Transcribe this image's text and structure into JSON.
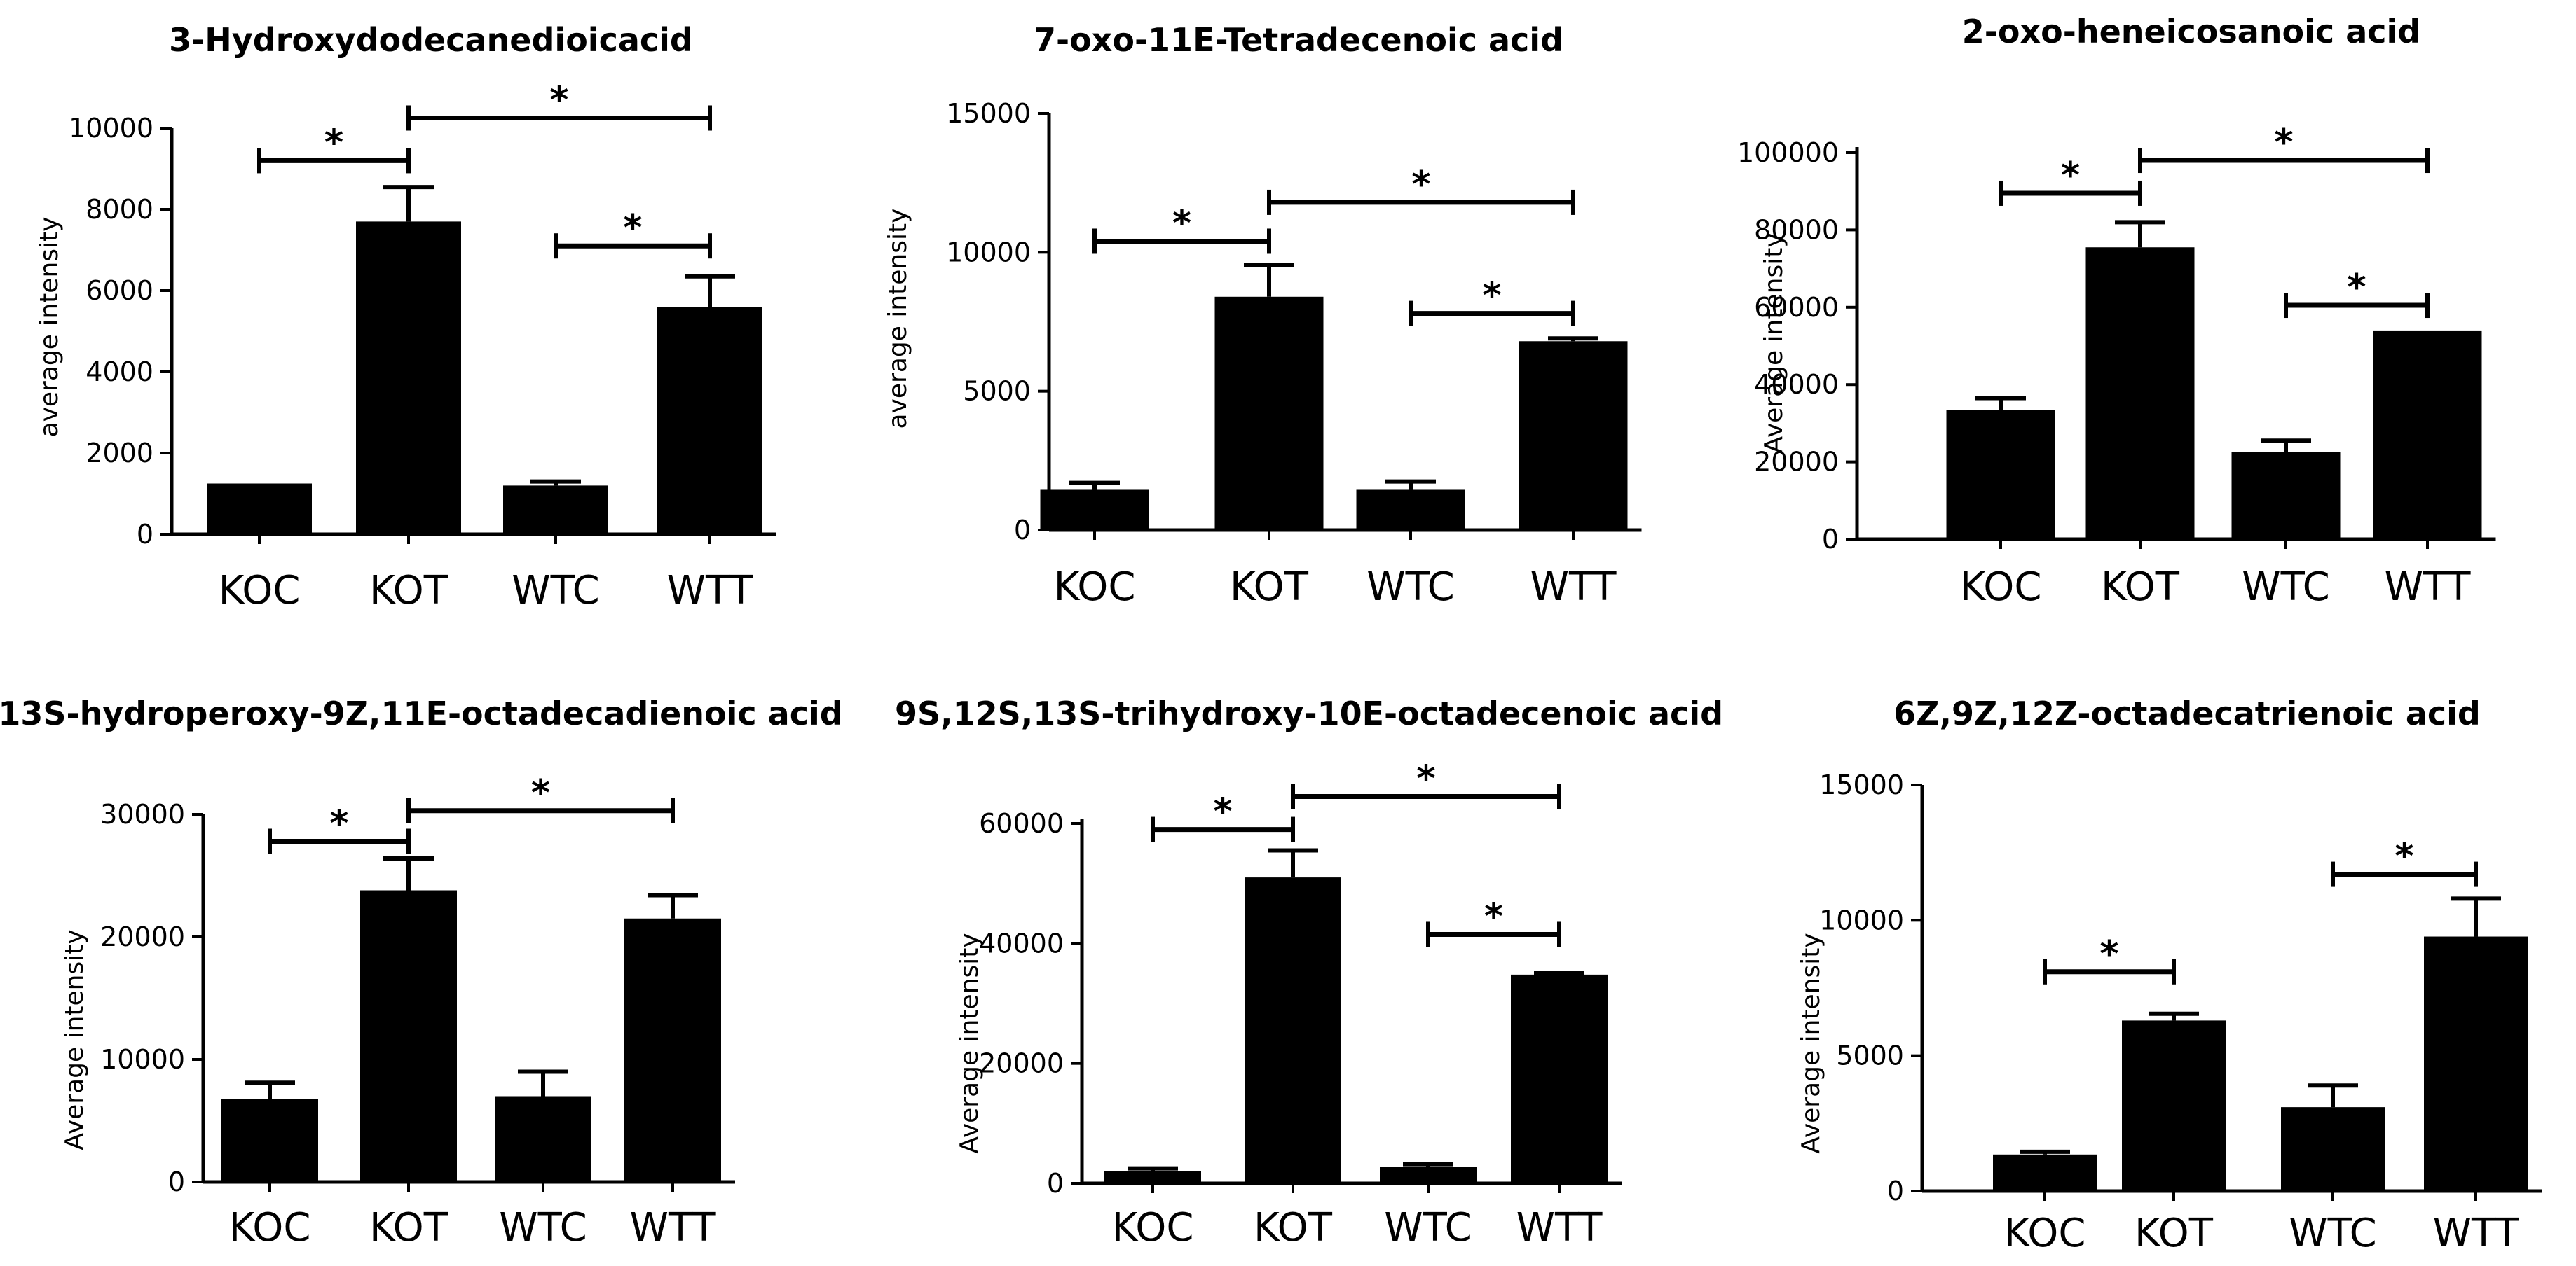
{
  "chart_data": [
    {
      "type": "bar",
      "title": "3-Hydroxydodecanedioicacid",
      "ylabel": "average intensity",
      "xlabel": "",
      "categories": [
        "KOC",
        "KOT",
        "WTC",
        "WTT"
      ],
      "values": [
        1250,
        7700,
        1200,
        5600
      ],
      "errors": [
        0,
        850,
        100,
        750
      ],
      "ylim": [
        0,
        10000
      ],
      "yticks": [
        0,
        2000,
        4000,
        6000,
        8000,
        10000
      ],
      "ytick_labels": [
        "0",
        "2000",
        "4000",
        "6000",
        "8000",
        "10000"
      ],
      "significance": [
        {
          "from": "KOC",
          "to": "KOT",
          "y": 9200,
          "label": "*"
        },
        {
          "from": "KOT",
          "to": "WTT",
          "y": 10250,
          "label": "*"
        },
        {
          "from": "WTC",
          "to": "WTT",
          "y": 7100,
          "label": "*"
        }
      ]
    },
    {
      "type": "bar",
      "title": "7-oxo-11E-Tetradecenoic acid",
      "ylabel": "average intensity",
      "xlabel": "",
      "categories": [
        "KOC",
        "KOT",
        "WTC",
        "WTT"
      ],
      "values": [
        1450,
        8400,
        1450,
        6800
      ],
      "errors": [
        250,
        1150,
        300,
        100
      ],
      "ylim": [
        0,
        15000
      ],
      "yticks": [
        0,
        5000,
        10000,
        15000
      ],
      "ytick_labels": [
        "0",
        "5000",
        "10000",
        "15000"
      ],
      "significance": [
        {
          "from": "KOC",
          "to": "KOT",
          "y": 10400,
          "label": "*"
        },
        {
          "from": "KOT",
          "to": "WTT",
          "y": 11800,
          "label": "*"
        },
        {
          "from": "WTC",
          "to": "WTT",
          "y": 7800,
          "label": "*"
        }
      ]
    },
    {
      "type": "bar",
      "title": "2-oxo-heneicosanoic acid",
      "ylabel": "Average intensity",
      "xlabel": "",
      "categories": [
        "KOC",
        "KOT",
        "WTC",
        "WTT"
      ],
      "values": [
        33500,
        75500,
        22500,
        54000
      ],
      "errors": [
        3000,
        6500,
        3000,
        0
      ],
      "ylim": [
        0,
        100000
      ],
      "yticks": [
        0,
        20000,
        40000,
        60000,
        80000,
        100000
      ],
      "ytick_labels": [
        "0",
        "20000",
        "40000",
        "60000",
        "80000",
        "100000"
      ],
      "significance": [
        {
          "from": "KOC",
          "to": "KOT",
          "y": 89500,
          "label": "*"
        },
        {
          "from": "KOT",
          "to": "WTT",
          "y": 98000,
          "label": "*"
        },
        {
          "from": "WTC",
          "to": "WTT",
          "y": 60500,
          "label": "*"
        }
      ]
    },
    {
      "type": "bar",
      "title": "13S-hydroperoxy-9Z,11E-octadecadienoic acid",
      "ylabel": "Average intensity",
      "xlabel": "",
      "categories": [
        "KOC",
        "KOT",
        "WTC",
        "WTT"
      ],
      "values": [
        6800,
        23800,
        7000,
        21500
      ],
      "errors": [
        1300,
        2600,
        2000,
        1900
      ],
      "ylim": [
        0,
        30000
      ],
      "yticks": [
        0,
        10000,
        20000,
        30000
      ],
      "ytick_labels": [
        "0",
        "10000",
        "20000",
        "30000"
      ],
      "significance": [
        {
          "from": "KOC",
          "to": "KOT",
          "y": 27800,
          "label": "*"
        },
        {
          "from": "KOT",
          "to": "WTT",
          "y": 30300,
          "label": "*"
        }
      ]
    },
    {
      "type": "bar",
      "title": "9S,12S,13S-trihydroxy-10E-octadecenoic acid",
      "ylabel": "Average intensity",
      "xlabel": "",
      "categories": [
        "KOC",
        "KOT",
        "WTC",
        "WTT"
      ],
      "values": [
        2000,
        51000,
        2700,
        34800
      ],
      "errors": [
        500,
        4500,
        500,
        300
      ],
      "ylim": [
        0,
        60000
      ],
      "yticks": [
        0,
        20000,
        40000,
        60000
      ],
      "ytick_labels": [
        "0",
        "20000",
        "40000",
        "60000"
      ],
      "significance": [
        {
          "from": "KOC",
          "to": "KOT",
          "y": 59000,
          "label": "*"
        },
        {
          "from": "KOT",
          "to": "WTT",
          "y": 64500,
          "label": "*"
        },
        {
          "from": "WTC",
          "to": "WTT",
          "y": 41500,
          "label": "*"
        }
      ]
    },
    {
      "type": "bar",
      "title": "6Z,9Z,12Z-octadecatrienoic acid",
      "ylabel": "Average intensity",
      "xlabel": "",
      "categories": [
        "KOC",
        "KOT",
        "WTC",
        "WTT"
      ],
      "values": [
        1350,
        6300,
        3100,
        9400
      ],
      "errors": [
        100,
        250,
        800,
        1400
      ],
      "ylim": [
        0,
        15000
      ],
      "yticks": [
        0,
        5000,
        10000,
        15000
      ],
      "ytick_labels": [
        "0",
        "5000",
        "10000",
        "15000"
      ],
      "significance": [
        {
          "from": "KOC",
          "to": "KOT",
          "y": 8100,
          "label": "*"
        },
        {
          "from": "WTC",
          "to": "WTT",
          "y": 11700,
          "label": "*"
        }
      ]
    }
  ]
}
